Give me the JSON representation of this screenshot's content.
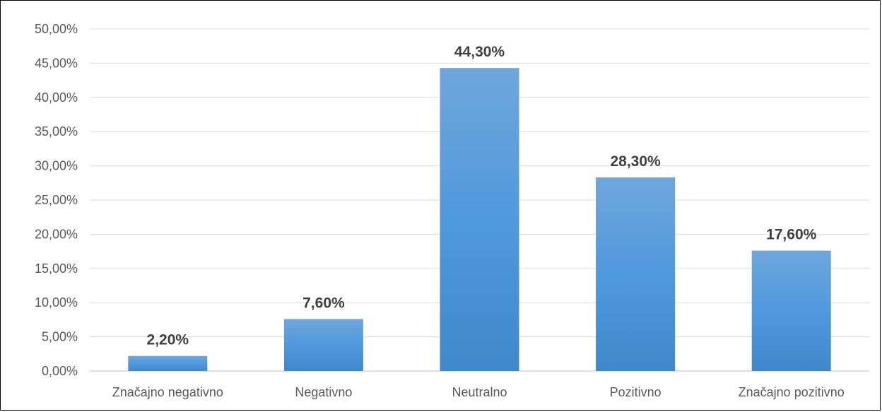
{
  "chart_data": {
    "type": "bar",
    "categories": [
      "Značajno negativno",
      "Negativno",
      "Neutralno",
      "Pozitivno",
      "Značajno pozitivno"
    ],
    "values": [
      2.2,
      7.6,
      44.3,
      28.3,
      17.6
    ],
    "data_labels": [
      "2,20%",
      "7,60%",
      "44,30%",
      "28,30%",
      "17,60%"
    ],
    "y_ticks": [
      0,
      5,
      10,
      15,
      20,
      25,
      30,
      35,
      40,
      45,
      50
    ],
    "y_tick_labels": [
      "0,00%",
      "5,00%",
      "10,00%",
      "15,00%",
      "20,00%",
      "25,00%",
      "30,00%",
      "35,00%",
      "40,00%",
      "45,00%",
      "50,00%"
    ],
    "ylim": [
      0,
      50
    ],
    "grid": true,
    "legend": "none",
    "colors": {
      "bar_top": "#6fa6dc",
      "bar_mid": "#4f99dd",
      "bar_bottom": "#3f88c9",
      "grid": "#d9d9d9",
      "axis": "#bfbfbf"
    }
  }
}
